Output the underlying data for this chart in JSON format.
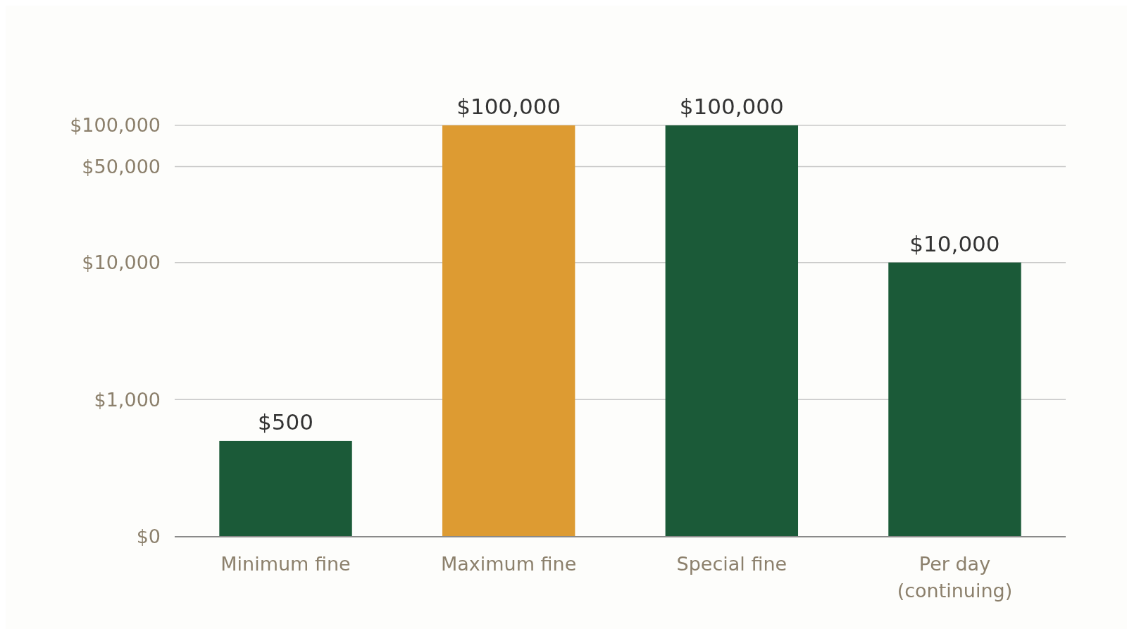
{
  "chart_data": {
    "type": "bar",
    "categories": [
      "Minimum fine",
      "Maximum fine",
      "Special fine",
      "Per day (continuing)"
    ],
    "values": [
      500,
      100000,
      100000,
      10000
    ],
    "colors": [
      "#1b5a38",
      "#dd9b32",
      "#1b5a38",
      "#1b5a38"
    ],
    "value_labels": [
      "$500",
      "$100,000",
      "$100,000",
      "$10,000"
    ],
    "log": true,
    "ylim": [
      0,
      100000
    ],
    "yticks": [
      {
        "value": 0,
        "label": "$0"
      },
      {
        "value": 1000,
        "label": "$1,000"
      },
      {
        "value": 10000,
        "label": "$10,000"
      },
      {
        "value": 50000,
        "label": "$50,000"
      },
      {
        "value": 100000,
        "label": "$100,000"
      }
    ],
    "grid": "y"
  }
}
